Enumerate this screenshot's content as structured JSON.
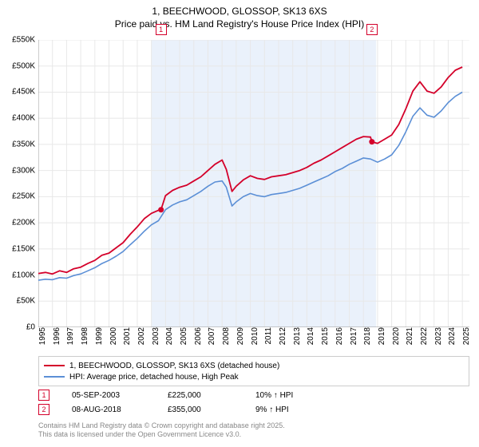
{
  "title": {
    "line1": "1, BEECHWOOD, GLOSSOP, SK13 6XS",
    "line2": "Price paid vs. HM Land Registry's House Price Index (HPI)"
  },
  "chart": {
    "type": "line",
    "background_color": "#ffffff",
    "shaded_band": {
      "x_start": 2003.0,
      "x_end": 2018.9,
      "fill": "#eaf1fb"
    },
    "xlim": [
      1995,
      2025.5
    ],
    "ylim": [
      0,
      550000
    ],
    "grid_color": "#e8e8e8",
    "axis_color": "#999999",
    "y_ticks": [
      0,
      50000,
      100000,
      150000,
      200000,
      250000,
      300000,
      350000,
      400000,
      450000,
      500000,
      550000
    ],
    "y_tick_labels": [
      "£0",
      "£50K",
      "£100K",
      "£150K",
      "£200K",
      "£250K",
      "£300K",
      "£350K",
      "£400K",
      "£450K",
      "£500K",
      "£550K"
    ],
    "x_ticks": [
      1995,
      1996,
      1997,
      1998,
      1999,
      2000,
      2001,
      2002,
      2003,
      2004,
      2005,
      2006,
      2007,
      2008,
      2009,
      2010,
      2011,
      2012,
      2013,
      2014,
      2015,
      2016,
      2017,
      2018,
      2019,
      2020,
      2021,
      2022,
      2023,
      2024,
      2025
    ],
    "label_fontsize": 10,
    "series": [
      {
        "name": "price_paid",
        "label": "1, BEECHWOOD, GLOSSOP, SK13 6XS (detached house)",
        "color": "#d4002a",
        "line_width": 1.8,
        "x": [
          1995,
          1995.5,
          1996,
          1996.5,
          1997,
          1997.5,
          1998,
          1998.5,
          1999,
          1999.5,
          2000,
          2000.5,
          2001,
          2001.5,
          2002,
          2002.5,
          2003,
          2003.5,
          2003.68,
          2004,
          2004.5,
          2005,
          2005.5,
          2006,
          2006.5,
          2007,
          2007.5,
          2008,
          2008.3,
          2008.7,
          2009,
          2009.5,
          2010,
          2010.5,
          2011,
          2011.5,
          2012,
          2012.5,
          2013,
          2013.5,
          2014,
          2014.5,
          2015,
          2015.5,
          2016,
          2016.5,
          2017,
          2017.5,
          2018,
          2018.5,
          2018.6,
          2019,
          2019.5,
          2020,
          2020.5,
          2021,
          2021.5,
          2022,
          2022.5,
          2023,
          2023.5,
          2024,
          2024.5,
          2025
        ],
        "y": [
          103000,
          105000,
          102000,
          108000,
          105000,
          112000,
          115000,
          122000,
          128000,
          138000,
          142000,
          152000,
          162000,
          178000,
          192000,
          208000,
          218000,
          224000,
          225000,
          252000,
          262000,
          268000,
          272000,
          280000,
          288000,
          300000,
          312000,
          320000,
          302000,
          260000,
          270000,
          282000,
          290000,
          285000,
          283000,
          288000,
          290000,
          292000,
          296000,
          300000,
          306000,
          314000,
          320000,
          328000,
          336000,
          344000,
          352000,
          360000,
          365000,
          364000,
          355000,
          352000,
          360000,
          368000,
          388000,
          418000,
          452000,
          470000,
          452000,
          448000,
          460000,
          478000,
          492000,
          498000
        ]
      },
      {
        "name": "hpi",
        "label": "HPI: Average price, detached house, High Peak",
        "color": "#5b8fd6",
        "line_width": 1.6,
        "x": [
          1995,
          1995.5,
          1996,
          1996.5,
          1997,
          1997.5,
          1998,
          1998.5,
          1999,
          1999.5,
          2000,
          2000.5,
          2001,
          2001.5,
          2002,
          2002.5,
          2003,
          2003.5,
          2004,
          2004.5,
          2005,
          2005.5,
          2006,
          2006.5,
          2007,
          2007.5,
          2008,
          2008.3,
          2008.7,
          2009,
          2009.5,
          2010,
          2010.5,
          2011,
          2011.5,
          2012,
          2012.5,
          2013,
          2013.5,
          2014,
          2014.5,
          2015,
          2015.5,
          2016,
          2016.5,
          2017,
          2017.5,
          2018,
          2018.5,
          2019,
          2019.5,
          2020,
          2020.5,
          2021,
          2021.5,
          2022,
          2022.5,
          2023,
          2023.5,
          2024,
          2024.5,
          2025
        ],
        "y": [
          90000,
          92000,
          91000,
          95000,
          94000,
          99000,
          102000,
          108000,
          114000,
          122000,
          128000,
          136000,
          145000,
          158000,
          170000,
          184000,
          196000,
          204000,
          225000,
          234000,
          240000,
          244000,
          252000,
          260000,
          270000,
          278000,
          280000,
          268000,
          232000,
          240000,
          250000,
          256000,
          252000,
          250000,
          254000,
          256000,
          258000,
          262000,
          266000,
          272000,
          278000,
          284000,
          290000,
          298000,
          304000,
          312000,
          318000,
          324000,
          322000,
          316000,
          322000,
          330000,
          348000,
          374000,
          404000,
          420000,
          406000,
          402000,
          414000,
          430000,
          442000,
          450000
        ]
      }
    ],
    "sale_points": [
      {
        "marker": "1",
        "x": 2003.68,
        "y": 225000,
        "color": "#d4002a"
      },
      {
        "marker": "2",
        "x": 2018.6,
        "y": 355000,
        "color": "#d4002a"
      }
    ],
    "top_markers": [
      {
        "marker": "1",
        "x": 2003.68,
        "border": "#d4002a",
        "text_color": "#d4002a"
      },
      {
        "marker": "2",
        "x": 2018.6,
        "border": "#d4002a",
        "text_color": "#d4002a"
      }
    ]
  },
  "legend": {
    "items": [
      {
        "label_path": "chart.series.0.label",
        "color": "#d4002a",
        "thickness": 2
      },
      {
        "label_path": "chart.series.1.label",
        "color": "#5b8fd6",
        "thickness": 2
      }
    ]
  },
  "sales": [
    {
      "marker": "1",
      "border": "#d4002a",
      "date": "05-SEP-2003",
      "price": "£225,000",
      "pct": "10% ↑ HPI"
    },
    {
      "marker": "2",
      "border": "#d4002a",
      "date": "08-AUG-2018",
      "price": "£355,000",
      "pct": "9% ↑ HPI"
    }
  ],
  "attribution": {
    "line1": "Contains HM Land Registry data © Crown copyright and database right 2025.",
    "line2": "This data is licensed under the Open Government Licence v3.0."
  }
}
